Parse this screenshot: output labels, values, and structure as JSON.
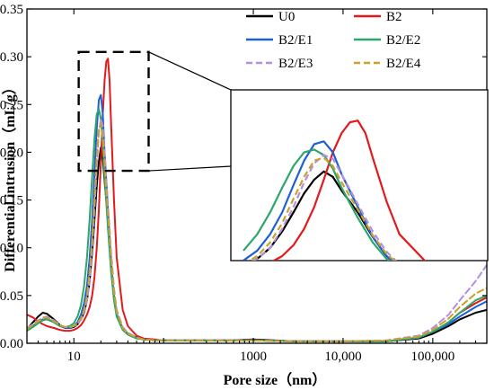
{
  "chart_data": {
    "type": "line",
    "xlabel": "Pore size（nm）",
    "ylabel": "Differential intrusion（mL/g）",
    "x_scale": "log",
    "xlim": [
      3,
      400000
    ],
    "ylim": [
      0,
      0.35
    ],
    "x_ticks": [
      {
        "value": 10,
        "label": "10"
      },
      {
        "value": 1000,
        "label": "1000"
      },
      {
        "value": 10000,
        "label": "10,000"
      },
      {
        "value": 100000,
        "label": "100,000"
      }
    ],
    "y_ticks": [
      {
        "value": 0,
        "label": "0.00"
      },
      {
        "value": 0.05,
        "label": "0.05"
      },
      {
        "value": 0.1,
        "label": "0.10"
      },
      {
        "value": 0.15,
        "label": "0.15"
      },
      {
        "value": 0.2,
        "label": "0.20"
      },
      {
        "value": 0.25,
        "label": "0.25"
      },
      {
        "value": 0.3,
        "label": "0.30"
      },
      {
        "value": 0.35,
        "label": "0.35"
      }
    ],
    "legend_position": "top-right",
    "series": [
      {
        "name": "U0",
        "color": "#000000",
        "dash": false,
        "x": [
          3,
          3.5,
          4,
          4.5,
          5,
          6,
          7,
          8,
          9,
          10,
          11,
          12,
          13,
          14,
          15,
          16,
          17,
          18,
          19,
          20,
          21,
          22,
          24,
          26,
          28,
          30,
          35,
          40,
          50,
          60,
          80,
          100,
          200,
          500,
          1000,
          3000,
          10000,
          30000,
          70000,
          100000,
          150000,
          200000,
          300000,
          400000
        ],
        "y": [
          0.015,
          0.022,
          0.028,
          0.032,
          0.031,
          0.025,
          0.019,
          0.016,
          0.016,
          0.017,
          0.02,
          0.025,
          0.032,
          0.045,
          0.065,
          0.095,
          0.13,
          0.165,
          0.19,
          0.205,
          0.195,
          0.17,
          0.13,
          0.085,
          0.05,
          0.03,
          0.015,
          0.01,
          0.006,
          0.004,
          0.003,
          0.003,
          0.003,
          0.003,
          0.004,
          0.002,
          0.002,
          0.002,
          0.005,
          0.01,
          0.018,
          0.025,
          0.032,
          0.035
        ]
      },
      {
        "name": "B2",
        "color": "#e31a1c",
        "dash": false,
        "x": [
          3,
          3.5,
          4,
          4.5,
          5,
          6,
          7,
          8,
          9,
          10,
          11,
          12,
          13,
          14,
          15,
          16,
          17,
          18,
          19,
          20,
          21,
          22,
          23,
          24,
          25,
          26,
          28,
          30,
          35,
          40,
          50,
          60,
          80,
          100,
          200,
          500,
          1000,
          3000,
          10000,
          30000,
          70000,
          100000,
          150000,
          200000,
          300000,
          400000
        ],
        "y": [
          0.03,
          0.027,
          0.023,
          0.02,
          0.018,
          0.016,
          0.014,
          0.013,
          0.013,
          0.014,
          0.016,
          0.019,
          0.024,
          0.03,
          0.038,
          0.05,
          0.07,
          0.1,
          0.14,
          0.19,
          0.24,
          0.275,
          0.295,
          0.298,
          0.275,
          0.23,
          0.15,
          0.09,
          0.035,
          0.018,
          0.008,
          0.005,
          0.004,
          0.003,
          0.003,
          0.003,
          0.003,
          0.002,
          0.002,
          0.002,
          0.006,
          0.012,
          0.022,
          0.032,
          0.042,
          0.048
        ]
      },
      {
        "name": "B2/E1",
        "color": "#1f5fd6",
        "dash": false,
        "x": [
          3,
          3.5,
          4,
          4.5,
          5,
          6,
          7,
          8,
          9,
          10,
          11,
          12,
          13,
          14,
          15,
          16,
          17,
          18,
          19,
          20,
          21,
          22,
          24,
          26,
          28,
          30,
          35,
          40,
          50,
          60,
          80,
          100,
          200,
          500,
          1000,
          3000,
          10000,
          30000,
          70000,
          100000,
          150000,
          200000,
          300000,
          400000
        ],
        "y": [
          0.014,
          0.018,
          0.022,
          0.025,
          0.026,
          0.022,
          0.018,
          0.016,
          0.016,
          0.018,
          0.022,
          0.03,
          0.042,
          0.06,
          0.09,
          0.13,
          0.18,
          0.225,
          0.255,
          0.26,
          0.24,
          0.2,
          0.14,
          0.085,
          0.05,
          0.03,
          0.015,
          0.01,
          0.006,
          0.004,
          0.003,
          0.003,
          0.003,
          0.003,
          0.003,
          0.002,
          0.002,
          0.002,
          0.006,
          0.012,
          0.02,
          0.028,
          0.038,
          0.044
        ]
      },
      {
        "name": "B2/E2",
        "color": "#2ca66a",
        "dash": false,
        "x": [
          3,
          3.5,
          4,
          4.5,
          5,
          6,
          7,
          8,
          9,
          10,
          11,
          12,
          13,
          14,
          15,
          16,
          17,
          18,
          19,
          20,
          21,
          22,
          24,
          26,
          28,
          30,
          35,
          40,
          50,
          60,
          80,
          100,
          200,
          500,
          1000,
          3000,
          10000,
          30000,
          70000,
          100000,
          150000,
          200000,
          300000,
          400000
        ],
        "y": [
          0.013,
          0.017,
          0.021,
          0.024,
          0.025,
          0.022,
          0.018,
          0.017,
          0.018,
          0.021,
          0.028,
          0.04,
          0.06,
          0.09,
          0.13,
          0.175,
          0.215,
          0.24,
          0.245,
          0.235,
          0.21,
          0.175,
          0.12,
          0.075,
          0.045,
          0.028,
          0.014,
          0.009,
          0.005,
          0.004,
          0.003,
          0.003,
          0.003,
          0.003,
          0.003,
          0.002,
          0.002,
          0.002,
          0.006,
          0.012,
          0.022,
          0.032,
          0.045,
          0.05
        ]
      },
      {
        "name": "B2/E3",
        "color": "#b38fe0",
        "dash": true,
        "x": [
          3,
          3.5,
          4,
          4.5,
          5,
          6,
          7,
          8,
          9,
          10,
          11,
          12,
          13,
          14,
          15,
          16,
          17,
          18,
          19,
          20,
          21,
          22,
          24,
          26,
          28,
          30,
          35,
          40,
          50,
          60,
          80,
          100,
          200,
          500,
          1000,
          3000,
          10000,
          30000,
          70000,
          100000,
          150000,
          200000,
          300000,
          400000
        ],
        "y": [
          0.016,
          0.02,
          0.024,
          0.027,
          0.028,
          0.024,
          0.019,
          0.017,
          0.017,
          0.018,
          0.02,
          0.025,
          0.033,
          0.045,
          0.065,
          0.1,
          0.14,
          0.185,
          0.22,
          0.235,
          0.228,
          0.2,
          0.145,
          0.095,
          0.058,
          0.035,
          0.017,
          0.011,
          0.006,
          0.004,
          0.003,
          0.003,
          0.003,
          0.003,
          0.003,
          0.002,
          0.002,
          0.003,
          0.008,
          0.016,
          0.03,
          0.045,
          0.065,
          0.082
        ]
      },
      {
        "name": "B2/E4",
        "color": "#c9a227",
        "dash": true,
        "x": [
          3,
          3.5,
          4,
          4.5,
          5,
          6,
          7,
          8,
          9,
          10,
          11,
          12,
          13,
          14,
          15,
          16,
          17,
          18,
          19,
          20,
          21,
          22,
          24,
          26,
          28,
          30,
          35,
          40,
          50,
          60,
          80,
          100,
          200,
          500,
          1000,
          3000,
          10000,
          30000,
          70000,
          100000,
          150000,
          200000,
          300000,
          400000
        ],
        "y": [
          0.015,
          0.019,
          0.023,
          0.026,
          0.027,
          0.023,
          0.019,
          0.017,
          0.017,
          0.018,
          0.021,
          0.026,
          0.035,
          0.05,
          0.075,
          0.11,
          0.155,
          0.195,
          0.225,
          0.23,
          0.215,
          0.185,
          0.135,
          0.088,
          0.054,
          0.033,
          0.016,
          0.01,
          0.006,
          0.004,
          0.003,
          0.003,
          0.003,
          0.003,
          0.003,
          0.002,
          0.002,
          0.003,
          0.007,
          0.014,
          0.026,
          0.038,
          0.052,
          0.058
        ]
      }
    ],
    "inset": {
      "zoom_xlim": [
        13,
        45
      ],
      "zoom_ylim": [
        0.19,
        0.305
      ]
    }
  }
}
